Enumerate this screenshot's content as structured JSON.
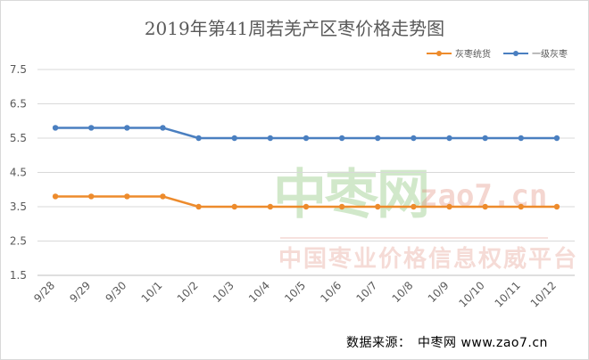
{
  "chart_data": {
    "type": "line",
    "title": "2019年第41周若羌产区枣价格走势图",
    "categories": [
      "9/28",
      "9/29",
      "9/30",
      "10/1",
      "10/2",
      "10/3",
      "10/4",
      "10/5",
      "10/6",
      "10/7",
      "10/8",
      "10/9",
      "10/10",
      "10/11",
      "10/12"
    ],
    "series": [
      {
        "name": "灰枣统货",
        "color": "#ed8b2c",
        "values": [
          3.8,
          3.8,
          3.8,
          3.8,
          3.5,
          3.5,
          3.5,
          3.5,
          3.5,
          3.5,
          3.5,
          3.5,
          3.5,
          3.5,
          3.5
        ]
      },
      {
        "name": "一级灰枣",
        "color": "#4a7fc0",
        "values": [
          5.8,
          5.8,
          5.8,
          5.8,
          5.5,
          5.5,
          5.5,
          5.5,
          5.5,
          5.5,
          5.5,
          5.5,
          5.5,
          5.5,
          5.5
        ]
      }
    ],
    "yticks": [
      "1.5",
      "2.5",
      "3.5",
      "4.5",
      "5.5",
      "6.5",
      "7.5"
    ],
    "ylim": [
      1.5,
      7.5
    ],
    "grid": true,
    "legend": "top-right"
  },
  "source": "数据来源：　中枣网 www.zao7.cn",
  "watermark": {
    "zh": "中枣网",
    "en": "zao7.cn",
    "sub": "中国枣业价格信息权威平台"
  }
}
